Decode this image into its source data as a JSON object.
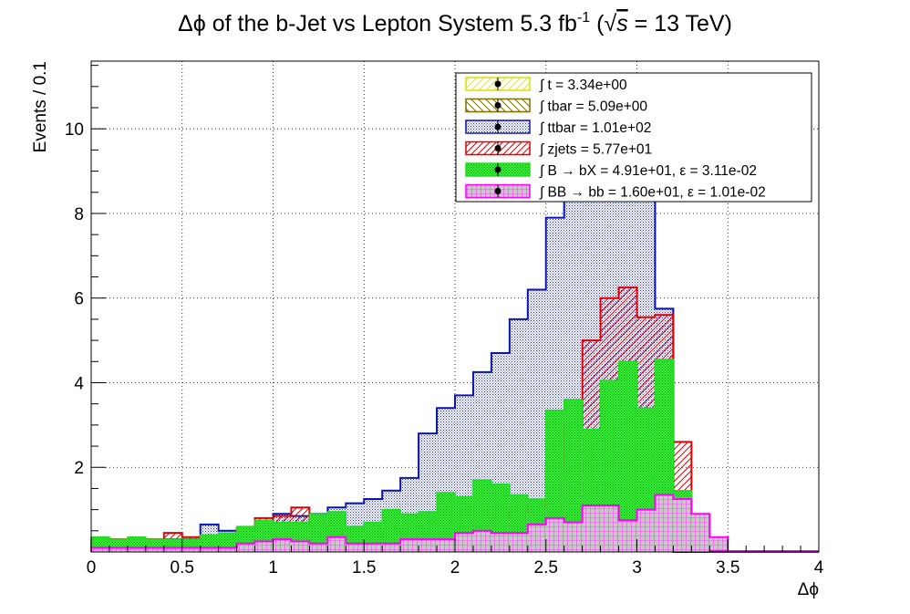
{
  "chart_data": {
    "type": "histogram",
    "title_parts": {
      "pre": "Δϕ of the b-Jet vs Lepton System 5.3 fb",
      "sup": "-1",
      "post1": " (",
      "sqrt": "√",
      "s": "s",
      "post2": " = 13 TeV)"
    },
    "xlabel": "Δϕ",
    "ylabel": "Events / 0.1",
    "xlim": [
      0,
      4
    ],
    "ylim": [
      0,
      11.6
    ],
    "bin_width": 0.1,
    "x_ticks": [
      "0",
      "0.5",
      "1",
      "1.5",
      "2",
      "2.5",
      "3",
      "3.5",
      "4"
    ],
    "x_tick_values": [
      0,
      0.5,
      1,
      1.5,
      2,
      2.5,
      3,
      3.5,
      4
    ],
    "y_ticks": [
      "2",
      "4",
      "6",
      "8",
      "10"
    ],
    "y_tick_values": [
      2,
      4,
      6,
      8,
      10
    ],
    "grid": true,
    "legend_position": "top-right",
    "series": [
      {
        "name": "t",
        "legend": "∫ t = 3.34e+00",
        "color": "#ffff00",
        "hatch": "diag",
        "values": [
          0.05,
          0.05,
          0.05,
          0.05,
          0.05,
          0.05,
          0.1,
          0.05,
          0.05,
          0.05,
          0.05,
          0.1,
          0.1,
          0.05,
          0.1,
          0.05,
          0.05,
          0.1,
          0.1,
          0.1,
          0.1,
          0.1,
          0.1,
          0.1,
          0.1,
          0.15,
          0.15,
          0.15,
          0.2,
          0.15,
          0.1,
          0.05,
          0,
          0,
          0,
          0,
          0,
          0,
          0,
          0
        ]
      },
      {
        "name": "tbar",
        "legend": "∫ tbar = 5.09e+00",
        "color": "#7d6b00",
        "hatch": "anti",
        "values": [
          0.05,
          0.05,
          0.05,
          0.05,
          0.05,
          0.05,
          0.1,
          0.05,
          0.1,
          0.05,
          0.1,
          0.1,
          0.1,
          0.1,
          0.1,
          0.1,
          0.1,
          0.15,
          0.15,
          0.2,
          0.15,
          0.2,
          0.2,
          0.25,
          0.25,
          0.3,
          0.25,
          0.3,
          0.3,
          0.25,
          0.2,
          0.1,
          0,
          0,
          0,
          0,
          0,
          0,
          0,
          0
        ]
      },
      {
        "name": "ttbar",
        "legend": "∫ ttbar = 1.01e+02",
        "color": "#0a14b0",
        "hatch": "dots",
        "values": [
          0.25,
          0.25,
          0.25,
          0.25,
          0.3,
          0.3,
          0.65,
          0.5,
          0.55,
          0.7,
          0.9,
          0.85,
          0.9,
          1.05,
          1.15,
          1.25,
          1.45,
          1.75,
          2.8,
          3.4,
          3.7,
          4.25,
          4.7,
          5.5,
          6.2,
          7.9,
          8.6,
          9.5,
          9.6,
          10.5,
          9.8,
          5.75,
          0,
          0,
          0,
          0,
          0,
          0,
          0,
          0
        ]
      },
      {
        "name": "zjets",
        "legend": "∫ zjets = 5.77e+01",
        "color": "#e00000",
        "hatch": "diag",
        "values": [
          0.3,
          0.3,
          0.3,
          0.3,
          0.45,
          0.35,
          0.3,
          0.3,
          0.55,
          0.8,
          0.85,
          1.05,
          0.6,
          0.5,
          0.55,
          0.5,
          0.4,
          0.55,
          0.65,
          0.55,
          0.6,
          0.7,
          0.8,
          0.95,
          1.1,
          2.0,
          3.05,
          5.0,
          6.0,
          6.25,
          5.55,
          5.6,
          2.6,
          0,
          0,
          0,
          0,
          0,
          0,
          0
        ]
      },
      {
        "name": "B -> bX",
        "legend": "∫ B → bX = 4.91e+01, ε = 3.11e-02",
        "color": "#22dd22",
        "hatch": "dots",
        "values": [
          0.35,
          0.3,
          0.35,
          0.3,
          0.3,
          0.3,
          0.4,
          0.45,
          0.6,
          0.75,
          0.7,
          0.7,
          0.9,
          0.95,
          0.6,
          0.7,
          1.0,
          0.9,
          0.95,
          1.4,
          1.3,
          1.7,
          1.6,
          1.35,
          1.25,
          3.35,
          3.6,
          2.9,
          4.05,
          4.5,
          3.4,
          4.55,
          1.45,
          0.8,
          0,
          0,
          0,
          0,
          0,
          0
        ]
      },
      {
        "name": "BB -> bb",
        "legend": "∫ BB → bb = 1.60e+01, ε = 1.01e-02",
        "color": "#ff00ff",
        "hatch": "cross",
        "values": [
          0.1,
          0.1,
          0.1,
          0.1,
          0.1,
          0.1,
          0.1,
          0.1,
          0.2,
          0.25,
          0.3,
          0.25,
          0.2,
          0.35,
          0.2,
          0.2,
          0.2,
          0.3,
          0.3,
          0.3,
          0.45,
          0.5,
          0.45,
          0.45,
          0.65,
          0.8,
          0.7,
          1.1,
          1.1,
          0.75,
          1.0,
          1.35,
          1.25,
          0.9,
          0.35,
          0,
          0,
          0,
          0,
          0
        ]
      }
    ]
  }
}
